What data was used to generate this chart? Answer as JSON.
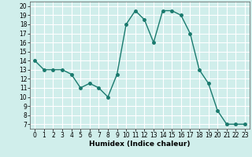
{
  "x": [
    0,
    1,
    2,
    3,
    4,
    5,
    6,
    7,
    8,
    9,
    10,
    11,
    12,
    13,
    14,
    15,
    16,
    17,
    18,
    19,
    20,
    21,
    22,
    23
  ],
  "y": [
    14,
    13,
    13,
    13,
    12.5,
    11,
    11.5,
    11,
    10,
    12.5,
    18,
    19.5,
    18.5,
    16,
    19.5,
    19.5,
    19,
    17,
    13,
    11.5,
    8.5,
    7,
    7,
    7
  ],
  "line_color": "#1a7a6e",
  "marker_color": "#1a7a6e",
  "bg_color": "#d0eeeb",
  "grid_color": "#ffffff",
  "xlabel": "Humidex (Indice chaleur)",
  "xlim": [
    -0.5,
    23.5
  ],
  "ylim": [
    6.5,
    20.5
  ],
  "yticks": [
    7,
    8,
    9,
    10,
    11,
    12,
    13,
    14,
    15,
    16,
    17,
    18,
    19,
    20
  ],
  "xticks": [
    0,
    1,
    2,
    3,
    4,
    5,
    6,
    7,
    8,
    9,
    10,
    11,
    12,
    13,
    14,
    15,
    16,
    17,
    18,
    19,
    20,
    21,
    22,
    23
  ],
  "axis_fontsize": 6.5,
  "tick_fontsize": 5.5,
  "marker_size": 2.5,
  "line_width": 1.0
}
